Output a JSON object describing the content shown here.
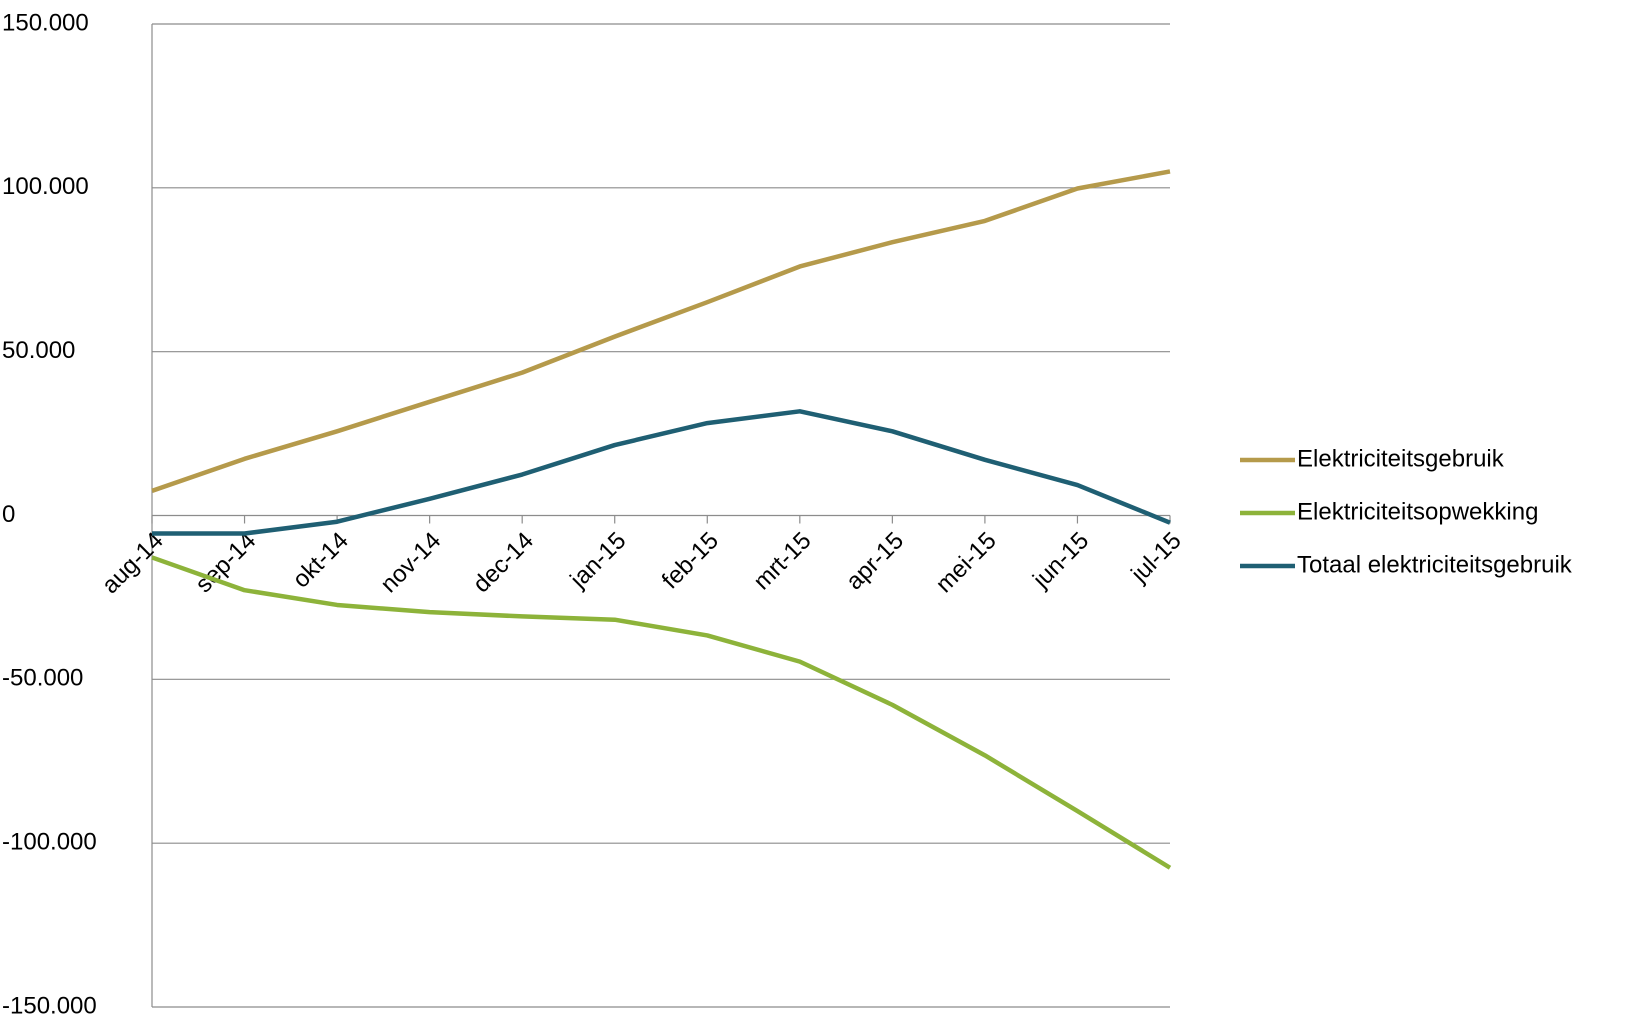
{
  "chart_data": {
    "type": "line",
    "categories": [
      "aug-14",
      "sep-14",
      "okt-14",
      "nov-14",
      "dec-14",
      "jan-15",
      "feb-15",
      "mrt-15",
      "apr-15",
      "mei-15",
      "jun-15",
      "jul-15"
    ],
    "series": [
      {
        "name": "Elektriciteitsgebruik",
        "color": "#b59a4b",
        "values": [
          7500,
          17300,
          25700,
          34700,
          43600,
          54600,
          65100,
          76000,
          83400,
          89900,
          99800,
          105000
        ]
      },
      {
        "name": "Elektriciteitsopwekking",
        "color": "#8db33a",
        "values": [
          -12800,
          -22800,
          -27300,
          -29500,
          -30800,
          -31800,
          -36600,
          -44600,
          -57800,
          -73200,
          -90200,
          -107500
        ]
      },
      {
        "name": "Totaal elektriciteitsgebruik",
        "color": "#1f5f73",
        "values": [
          -5500,
          -5500,
          -1900,
          5100,
          12500,
          21500,
          28200,
          31800,
          25700,
          17000,
          9300,
          -2200
        ]
      }
    ],
    "ylim": [
      -150000,
      150000
    ],
    "yticks": [
      {
        "value": -150000,
        "label": "-150.000"
      },
      {
        "value": -100000,
        "label": "-100.000"
      },
      {
        "value": -50000,
        "label": "-50.000"
      },
      0,
      {
        "value": 50000,
        "label": "50.000"
      },
      {
        "value": 100000,
        "label": "100.000"
      },
      {
        "value": 150000,
        "label": "150.000"
      }
    ],
    "grid": true,
    "legend": "right"
  }
}
